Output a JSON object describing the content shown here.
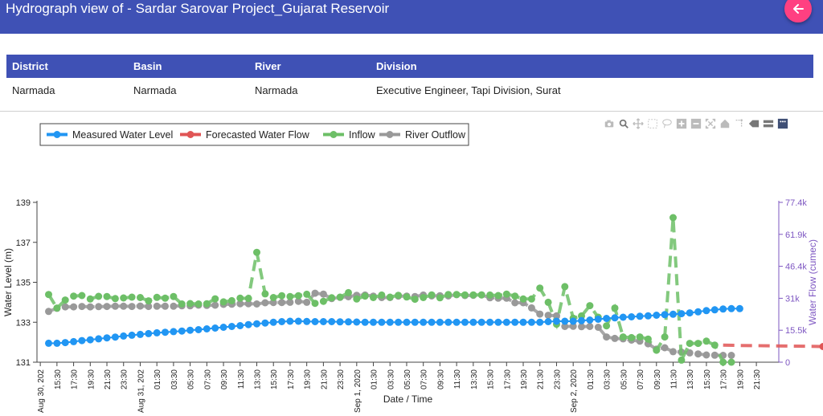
{
  "header": {
    "title": "Hydrograph view of - Sardar Sarovar Project_Gujarat Reservoir",
    "back_icon": "arrow-left-icon"
  },
  "info_table": {
    "headers": [
      "District",
      "Basin",
      "River",
      "Division"
    ],
    "values": [
      "Narmada",
      "Narmada",
      "Narmada",
      "Executive Engineer, Tapi Division, Surat"
    ]
  },
  "modebar": {
    "icons": [
      "camera-icon",
      "zoom-icon",
      "pan-icon",
      "box-select-icon",
      "lasso-icon",
      "zoom-in-icon",
      "zoom-out-icon",
      "autoscale-icon",
      "home-icon",
      "spike-lines-icon",
      "hover-closest-icon",
      "hover-compare-icon",
      "plotly-logo-icon"
    ]
  },
  "colors": {
    "accent": "#3f51b5",
    "back_button": "#ff4081",
    "measured": "#2196f3",
    "forecast": "#e05555",
    "inflow": "#6dbf67",
    "outflow": "#999999",
    "y2_axis": "#7e57c2"
  },
  "chart_data": {
    "type": "line",
    "xlabel": "Date / Time",
    "ylabel": "Water Level (m)",
    "y2label": "Water Flow (cumec)",
    "ylim": [
      131,
      139
    ],
    "y2lim": [
      0,
      77400
    ],
    "yticks": [
      "131",
      "133",
      "135",
      "137",
      "139"
    ],
    "y2ticks": [
      "0",
      "15.5k",
      "31k",
      "46.4k",
      "61.9k",
      "77.4k"
    ],
    "xticks": [
      "Aug 30, 202",
      "15:30",
      "17:30",
      "19:30",
      "21:30",
      "23:30",
      "Aug 31, 202",
      "01:30",
      "03:30",
      "05:30",
      "07:30",
      "09:30",
      "11:30",
      "13:30",
      "15:30",
      "17:30",
      "19:30",
      "21:30",
      "23:30",
      "Sep 1, 2020",
      "01:30",
      "03:30",
      "05:30",
      "07:30",
      "09:30",
      "11:30",
      "13:30",
      "15:30",
      "17:30",
      "19:30",
      "21:30",
      "23:30",
      "Sep 2, 2020",
      "01:30",
      "03:30",
      "05:30",
      "07:30",
      "09:30",
      "11:30",
      "13:30",
      "15:30",
      "17:30",
      "19:30",
      "21:30"
    ],
    "legend": [
      "Measured Water Level",
      "Forecasted Water Flow",
      "Inflow",
      "River Outflow"
    ],
    "legend_position": "top-left",
    "grid": false,
    "series": [
      {
        "name": "Measured Water Level",
        "axis": "y",
        "color": "#2196f3",
        "dash": "solid",
        "x": [
          0,
          0.5,
          1,
          1.5,
          2,
          2.5,
          3,
          3.5,
          4,
          4.5,
          5,
          5.5,
          6,
          6.5,
          7,
          7.5,
          8,
          8.5,
          9,
          9.5,
          10,
          10.5,
          11,
          11.5,
          12,
          12.5,
          13,
          13.5,
          14,
          14.5,
          15,
          15.5,
          16,
          16.5,
          17,
          17.5,
          18,
          18.5,
          19,
          19.5,
          20,
          20.5,
          21,
          21.5,
          22,
          22.5,
          23,
          23.5,
          24,
          24.5,
          25,
          25.5,
          26,
          26.5,
          27,
          27.5,
          28,
          28.5,
          29,
          29.5,
          30,
          30.5,
          31,
          31.5,
          32,
          32.5,
          33,
          33.5,
          34,
          34.5,
          35,
          35.5,
          36,
          36.5,
          37,
          37.5,
          38,
          38.5,
          39,
          39.5,
          40,
          40.5,
          41,
          41.5
        ],
        "values": [
          131.95,
          131.95,
          131.98,
          132.03,
          132.08,
          132.12,
          132.17,
          132.22,
          132.26,
          132.31,
          132.35,
          132.39,
          132.43,
          132.47,
          132.5,
          132.53,
          132.56,
          132.6,
          132.63,
          132.67,
          132.71,
          132.75,
          132.79,
          132.83,
          132.88,
          132.92,
          132.96,
          133.0,
          133.03,
          133.05,
          133.05,
          133.04,
          133.03,
          133.03,
          133.03,
          133.02,
          133.02,
          133.01,
          133.0,
          133.0,
          133.0,
          133.0,
          133.0,
          133.0,
          133.0,
          133.0,
          133.0,
          133.0,
          133.0,
          133.0,
          133.0,
          133.0,
          133.0,
          133.0,
          133.0,
          133.0,
          133.0,
          133.0,
          133.0,
          133.0,
          133.03,
          133.05,
          133.05,
          133.05,
          133.08,
          133.11,
          133.15,
          133.19,
          133.22,
          133.25,
          133.27,
          133.3,
          133.32,
          133.35,
          133.38,
          133.4,
          133.43,
          133.47,
          133.52,
          133.58,
          133.62,
          133.66,
          133.68,
          133.68
        ]
      },
      {
        "name": "Forecasted Water Flow",
        "axis": "y2",
        "color": "#e05555",
        "dash": "dash",
        "x": [
          40.5,
          41.5,
          42.5,
          43.5,
          44.5,
          45.5,
          46.5
        ],
        "values": [
          8300,
          8100,
          8000,
          7900,
          7800,
          7700,
          7600
        ]
      },
      {
        "name": "Inflow",
        "axis": "y2",
        "color": "#6dbf67",
        "dash": "dash",
        "x": [
          0,
          0.5,
          1,
          1.5,
          2,
          2.5,
          3,
          3.5,
          4,
          4.5,
          5,
          5.5,
          6,
          6.5,
          7,
          7.5,
          8,
          8.5,
          9,
          9.5,
          10,
          10.5,
          11,
          11.5,
          12,
          12.5,
          13,
          13.5,
          14,
          14.5,
          15,
          15.5,
          16,
          16.5,
          17,
          17.5,
          18,
          18.5,
          19,
          19.5,
          20,
          20.5,
          21,
          21.5,
          22,
          22.5,
          23,
          23.5,
          24,
          24.5,
          25,
          25.5,
          26,
          26.5,
          27,
          27.5,
          28,
          28.5,
          29,
          29.5,
          30,
          30.5,
          31,
          31.5,
          32,
          32.5,
          33,
          33.5,
          34,
          34.5,
          35,
          35.5,
          36,
          36.5,
          37,
          37.5,
          38,
          38.5,
          39,
          39.5,
          40,
          40.5,
          41
        ],
        "values": [
          32800,
          26200,
          30100,
          32000,
          32300,
          30600,
          31900,
          31800,
          30800,
          31100,
          31500,
          31300,
          29700,
          31400,
          31000,
          31800,
          28200,
          28400,
          28200,
          28300,
          30700,
          29200,
          29800,
          31000,
          30900,
          53200,
          33100,
          31300,
          32200,
          31800,
          32200,
          32900,
          28500,
          29500,
          31200,
          31500,
          33700,
          30600,
          32000,
          31300,
          32500,
          31500,
          32400,
          31600,
          30500,
          31300,
          32600,
          31200,
          32800,
          32800,
          32600,
          32600,
          32600,
          32500,
          32300,
          33000,
          32000,
          30600,
          30600,
          35900,
          29000,
          18400,
          36600,
          21300,
          22400,
          27400,
          21800,
          17600,
          26200,
          12200,
          11900,
          12200,
          11200,
          5800,
          12200,
          70000,
          1000,
          9100,
          9100,
          10200,
          8300,
          0,
          0
        ]
      },
      {
        "name": "River Outflow",
        "axis": "y2",
        "color": "#999999",
        "dash": "dash",
        "x": [
          0,
          0.5,
          1,
          1.5,
          2,
          2.5,
          3,
          3.5,
          4,
          4.5,
          5,
          5.5,
          6,
          6.5,
          7,
          7.5,
          8,
          8.5,
          9,
          9.5,
          10,
          10.5,
          11,
          11.5,
          12,
          12.5,
          13,
          13.5,
          14,
          14.5,
          15,
          15.5,
          16,
          16.5,
          17,
          17.5,
          18,
          18.5,
          19,
          19.5,
          20,
          20.5,
          21,
          21.5,
          22,
          22.5,
          23,
          23.5,
          24,
          24.5,
          25,
          25.5,
          26,
          26.5,
          27,
          27.5,
          28,
          28.5,
          29,
          29.5,
          30,
          30.5,
          31,
          31.5,
          32,
          32.5,
          33,
          33.5,
          34,
          34.5,
          35,
          35.5,
          36,
          36.5,
          37,
          37.5,
          38,
          38.5,
          39,
          39.5,
          40,
          40.5,
          41
        ],
        "values": [
          24600,
          26100,
          26800,
          26800,
          27000,
          26800,
          26900,
          27000,
          27100,
          27100,
          27000,
          27200,
          27000,
          27100,
          27100,
          27100,
          27300,
          27300,
          27600,
          27500,
          27600,
          28000,
          28100,
          28300,
          28300,
          28200,
          28800,
          28900,
          28900,
          29000,
          29500,
          29000,
          33400,
          33000,
          30800,
          31400,
          31700,
          32400,
          32500,
          32000,
          31300,
          31300,
          32000,
          32000,
          31800,
          32500,
          32100,
          32200,
          32100,
          32700,
          32300,
          32400,
          32600,
          31200,
          31000,
          31000,
          28800,
          28800,
          26300,
          23300,
          22700,
          22500,
          17300,
          17400,
          17200,
          17300,
          16900,
          12200,
          11500,
          11300,
          10700,
          10200,
          8900,
          6300,
          7000,
          5100,
          4900,
          4500,
          4000,
          3500,
          3400,
          3300,
          3300
        ]
      }
    ]
  }
}
